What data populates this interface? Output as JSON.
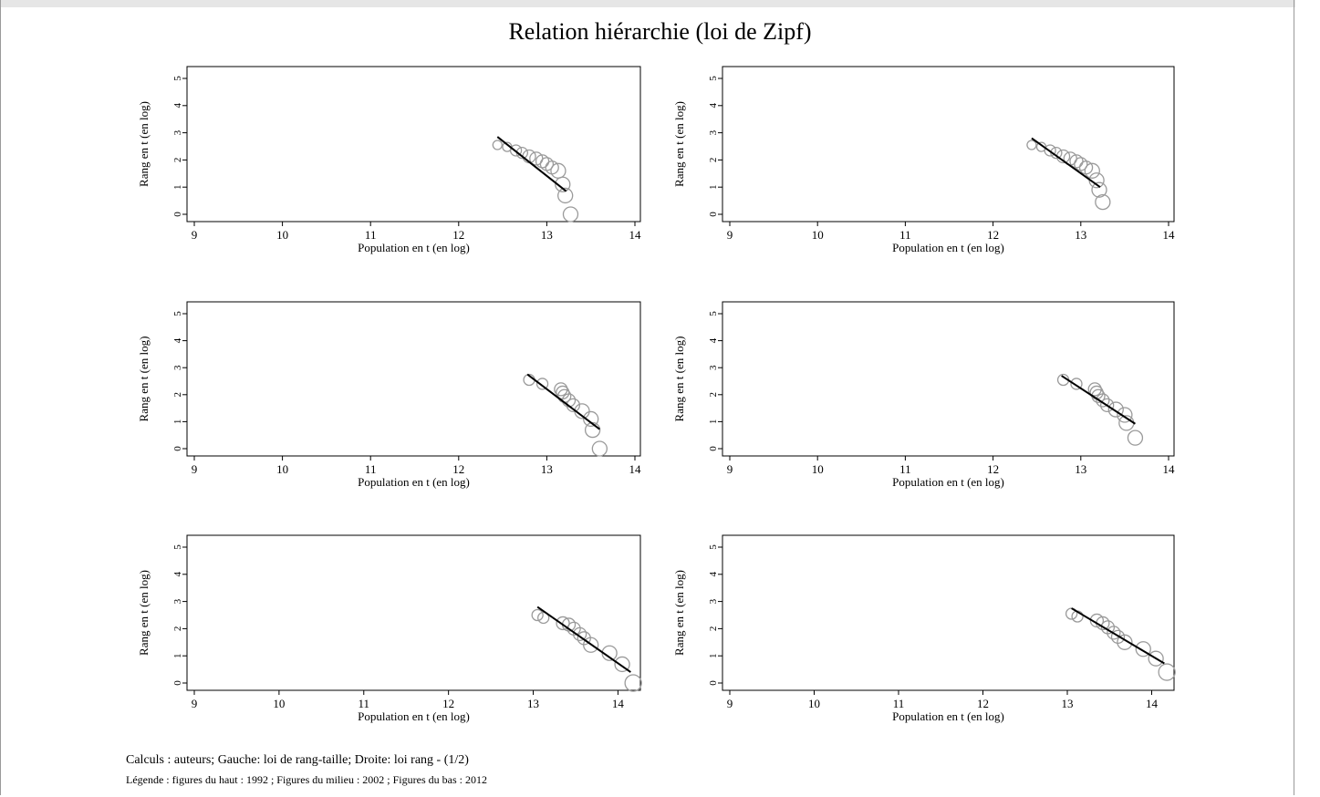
{
  "figure": {
    "title": "Relation hiérarchie (loi de Zipf)",
    "caption_line1": "Calculs : auteurs; Gauche: loi de rang-taille; Droite: loi rang - (1/2)",
    "caption_line2": "Légende : figures du haut : 1992 ; Figures du milieu : 2002 ; Figures du bas : 2012"
  },
  "style": {
    "marker_color": "#9a9a9a",
    "line_color": "#000000",
    "frame_color": "#000000"
  },
  "chart_data": [
    {
      "type": "scatter",
      "title": "",
      "xlabel": "Population en t (en log)",
      "ylabel": "Rang en t (en log)",
      "xlim": [
        9,
        14
      ],
      "ylim": [
        0,
        5
      ],
      "xticks": [
        9,
        10,
        11,
        12,
        13,
        14
      ],
      "yticks": [
        0,
        1,
        2,
        3,
        4,
        5
      ],
      "grid": false,
      "points": [
        [
          12.44,
          2.55,
          5
        ],
        [
          12.55,
          2.48,
          5
        ],
        [
          12.65,
          2.35,
          6
        ],
        [
          12.72,
          2.26,
          6
        ],
        [
          12.8,
          2.13,
          7
        ],
        [
          12.88,
          2.05,
          7
        ],
        [
          12.95,
          1.95,
          7
        ],
        [
          13.0,
          1.85,
          7
        ],
        [
          13.06,
          1.72,
          7
        ],
        [
          13.13,
          1.6,
          8
        ],
        [
          13.18,
          1.1,
          8
        ],
        [
          13.21,
          0.69,
          8
        ],
        [
          13.27,
          0.0,
          8
        ]
      ],
      "fit_line": [
        [
          12.44,
          2.85
        ],
        [
          13.22,
          0.85
        ]
      ]
    },
    {
      "type": "scatter",
      "title": "",
      "xlabel": "Population en t (en log)",
      "ylabel": "Rang en t (en log)",
      "xlim": [
        9,
        14
      ],
      "ylim": [
        0,
        5
      ],
      "xticks": [
        9,
        10,
        11,
        12,
        13,
        14
      ],
      "yticks": [
        0,
        1,
        2,
        3,
        4,
        5
      ],
      "grid": false,
      "points": [
        [
          12.44,
          2.55,
          5
        ],
        [
          12.55,
          2.48,
          5
        ],
        [
          12.65,
          2.35,
          6
        ],
        [
          12.72,
          2.26,
          6
        ],
        [
          12.8,
          2.13,
          7
        ],
        [
          12.88,
          2.05,
          7
        ],
        [
          12.95,
          1.95,
          7
        ],
        [
          13.0,
          1.85,
          7
        ],
        [
          13.06,
          1.72,
          7
        ],
        [
          13.13,
          1.6,
          8
        ],
        [
          13.18,
          1.25,
          8
        ],
        [
          13.21,
          0.9,
          8
        ],
        [
          13.25,
          0.45,
          8
        ]
      ],
      "fit_line": [
        [
          12.44,
          2.8
        ],
        [
          13.22,
          1.0
        ]
      ]
    },
    {
      "type": "scatter",
      "title": "",
      "xlabel": "Population en t (en log)",
      "ylabel": "Rang en t (en log)",
      "xlim": [
        9,
        14
      ],
      "ylim": [
        0,
        5
      ],
      "xticks": [
        9,
        10,
        11,
        12,
        13,
        14
      ],
      "yticks": [
        0,
        1,
        2,
        3,
        4,
        5
      ],
      "grid": false,
      "points": [
        [
          12.8,
          2.55,
          6
        ],
        [
          12.95,
          2.4,
          6
        ],
        [
          13.16,
          2.2,
          7
        ],
        [
          13.18,
          2.08,
          7
        ],
        [
          13.2,
          1.95,
          7
        ],
        [
          13.25,
          1.79,
          7
        ],
        [
          13.3,
          1.61,
          7
        ],
        [
          13.4,
          1.39,
          8
        ],
        [
          13.5,
          1.1,
          8
        ],
        [
          13.52,
          0.69,
          8
        ],
        [
          13.6,
          0.0,
          8
        ]
      ],
      "fit_line": [
        [
          12.78,
          2.75
        ],
        [
          13.6,
          0.72
        ]
      ]
    },
    {
      "type": "scatter",
      "title": "",
      "xlabel": "Population en t (en log)",
      "ylabel": "Rang en t (en log)",
      "xlim": [
        9,
        14
      ],
      "ylim": [
        0,
        5
      ],
      "xticks": [
        9,
        10,
        11,
        12,
        13,
        14
      ],
      "yticks": [
        0,
        1,
        2,
        3,
        4,
        5
      ],
      "grid": false,
      "points": [
        [
          12.8,
          2.55,
          6
        ],
        [
          12.95,
          2.4,
          6
        ],
        [
          13.16,
          2.2,
          7
        ],
        [
          13.18,
          2.08,
          7
        ],
        [
          13.2,
          1.95,
          7
        ],
        [
          13.25,
          1.79,
          7
        ],
        [
          13.3,
          1.61,
          7
        ],
        [
          13.4,
          1.45,
          8
        ],
        [
          13.5,
          1.25,
          8
        ],
        [
          13.52,
          0.95,
          8
        ],
        [
          13.62,
          0.4,
          8
        ]
      ],
      "fit_line": [
        [
          12.78,
          2.7
        ],
        [
          13.62,
          0.92
        ]
      ]
    },
    {
      "type": "scatter",
      "title": "",
      "xlabel": "Population en t (en log)",
      "ylabel": "Rang en t (en log)",
      "xlim": [
        9,
        14.2
      ],
      "ylim": [
        0,
        5
      ],
      "xticks": [
        9,
        10,
        11,
        12,
        13,
        14
      ],
      "yticks": [
        0,
        1,
        2,
        3,
        4,
        5
      ],
      "grid": false,
      "points": [
        [
          13.05,
          2.5,
          6
        ],
        [
          13.12,
          2.4,
          6
        ],
        [
          13.35,
          2.2,
          7
        ],
        [
          13.42,
          2.15,
          7
        ],
        [
          13.48,
          2.0,
          7
        ],
        [
          13.55,
          1.8,
          7
        ],
        [
          13.6,
          1.65,
          7
        ],
        [
          13.68,
          1.4,
          8
        ],
        [
          13.9,
          1.1,
          8
        ],
        [
          14.05,
          0.69,
          8
        ],
        [
          14.18,
          0.0,
          9
        ]
      ],
      "fit_line": [
        [
          13.05,
          2.8
        ],
        [
          14.15,
          0.4
        ]
      ]
    },
    {
      "type": "scatter",
      "title": "",
      "xlabel": "Population en t (en log)",
      "ylabel": "Rang en t (en log)",
      "xlim": [
        9,
        14.2
      ],
      "ylim": [
        0,
        5
      ],
      "xticks": [
        9,
        10,
        11,
        12,
        13,
        14
      ],
      "yticks": [
        0,
        1,
        2,
        3,
        4,
        5
      ],
      "grid": false,
      "points": [
        [
          13.05,
          2.55,
          6
        ],
        [
          13.12,
          2.45,
          6
        ],
        [
          13.35,
          2.3,
          7
        ],
        [
          13.42,
          2.2,
          7
        ],
        [
          13.48,
          2.05,
          7
        ],
        [
          13.55,
          1.85,
          7
        ],
        [
          13.6,
          1.7,
          7
        ],
        [
          13.68,
          1.5,
          8
        ],
        [
          13.9,
          1.25,
          8
        ],
        [
          14.05,
          0.9,
          8
        ],
        [
          14.18,
          0.4,
          9
        ]
      ],
      "fit_line": [
        [
          13.05,
          2.75
        ],
        [
          14.15,
          0.72
        ]
      ]
    }
  ]
}
